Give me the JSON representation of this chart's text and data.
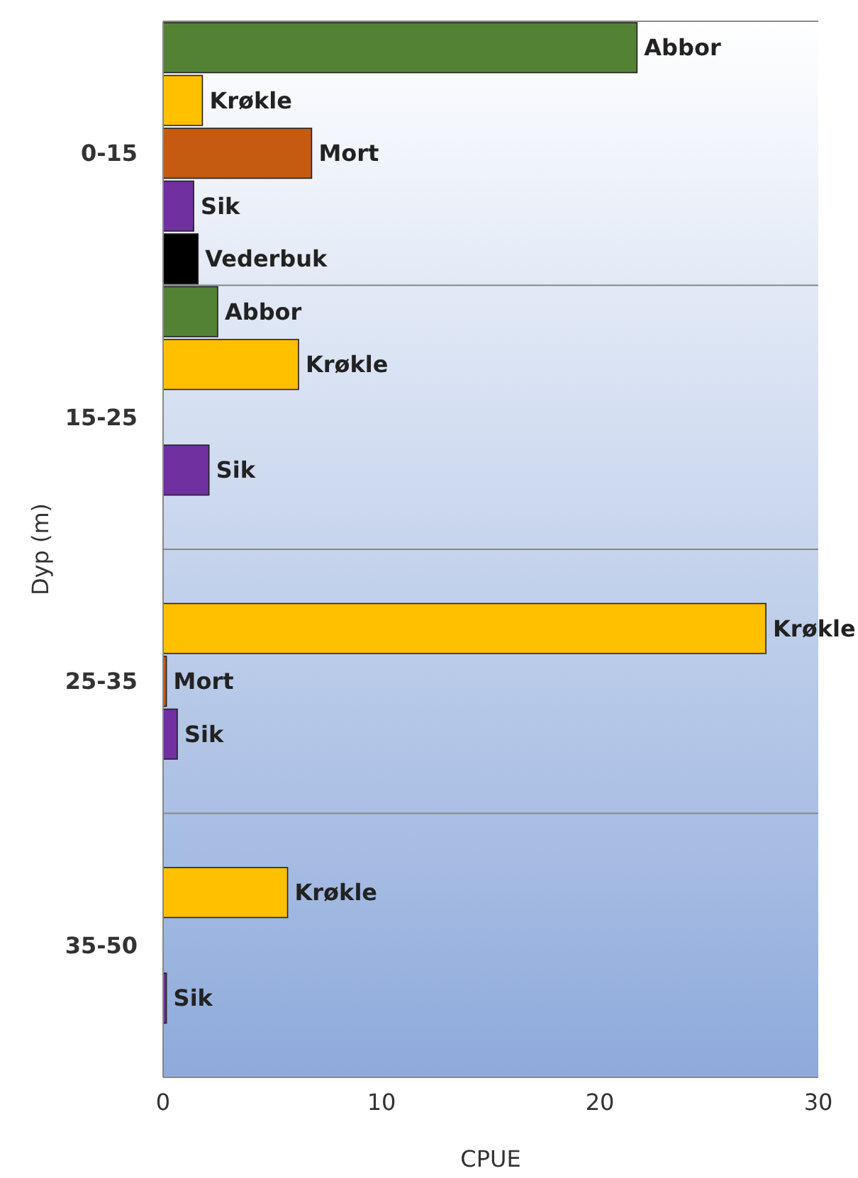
{
  "chart_data": {
    "type": "bar",
    "orientation": "horizontal",
    "xlabel": "CPUE",
    "ylabel": "Dyp (m)",
    "categories": [
      "0-15",
      "15-25",
      "25-35",
      "35-50"
    ],
    "series": [
      {
        "name": "Abbor",
        "color": "#548235",
        "values": [
          21.7,
          2.5,
          null,
          null
        ]
      },
      {
        "name": "Krøkle",
        "color": "#ffc000",
        "values": [
          1.8,
          6.2,
          27.6,
          5.7
        ]
      },
      {
        "name": "Mort",
        "color": "#c55a11",
        "values": [
          6.8,
          null,
          0.15,
          null
        ]
      },
      {
        "name": "Sik",
        "color": "#7030a0",
        "values": [
          1.4,
          2.1,
          0.65,
          0.15
        ]
      },
      {
        "name": "Vederbuk",
        "color": "#000000",
        "values": [
          1.6,
          null,
          null,
          null
        ]
      }
    ],
    "xlim": [
      0,
      30
    ],
    "xticks": [
      0,
      10,
      20,
      30
    ],
    "grid": false
  }
}
